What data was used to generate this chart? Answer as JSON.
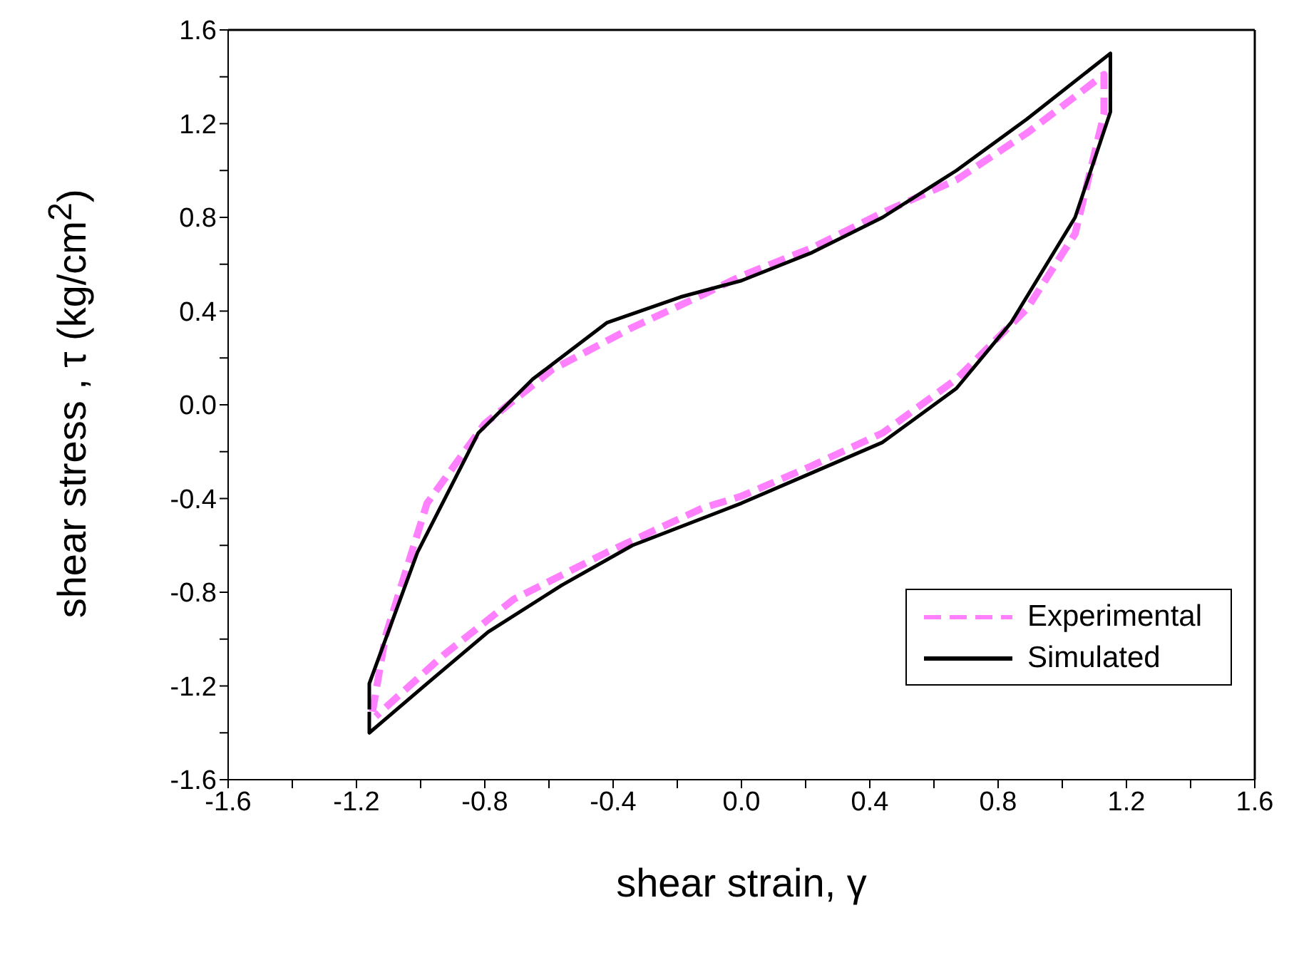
{
  "chart_data": {
    "type": "line",
    "xlabel": "shear strain, γ",
    "ylabel": "shear stress , τ (kg/cm$^{2}$)",
    "xlim": [
      -1.6,
      1.6
    ],
    "ylim": [
      -1.6,
      1.6
    ],
    "xticks": [
      -1.6,
      {
        "value": -1.4,
        "label": null
      },
      -1.2,
      {
        "value": -1.0,
        "label": null
      },
      -0.8,
      {
        "value": -0.6,
        "label": null
      },
      -0.4,
      {
        "value": -0.2,
        "label": null
      },
      {
        "value": 0,
        "label": "0.0"
      },
      {
        "value": 0.2,
        "label": null
      },
      0.4,
      {
        "value": 0.6,
        "label": null
      },
      0.8,
      {
        "value": 1.0,
        "label": null
      },
      1.2,
      {
        "value": 1.4,
        "label": null
      },
      1.6
    ],
    "yticks": [
      -1.6,
      {
        "value": -1.4,
        "label": null
      },
      -1.2,
      {
        "value": -1.0,
        "label": null
      },
      -0.8,
      {
        "value": -0.6,
        "label": null
      },
      -0.4,
      {
        "value": -0.2,
        "label": null
      },
      {
        "value": 0,
        "label": "0.0"
      },
      {
        "value": 0.2,
        "label": null
      },
      0.4,
      {
        "value": 0.6,
        "label": null
      },
      0.8,
      {
        "value": 1.0,
        "label": null
      },
      1.2,
      {
        "value": 1.4,
        "label": null
      },
      1.6
    ],
    "grid": false,
    "legend": "bottom right",
    "marker": "none",
    "series": [
      {
        "name": "Experimental",
        "color": "#ff80ff",
        "line_style": "dashed",
        "x": [
          -1.15,
          -1.11,
          -0.98,
          -0.8,
          -0.59,
          -0.34,
          -0.12,
          0,
          0.22,
          0.44,
          0.67,
          0.89,
          1.13,
          1.13,
          1.04,
          0.89,
          0.67,
          0.44,
          0.22,
          0,
          -0.12,
          -0.42,
          -0.71,
          -0.93,
          -1.14
        ],
        "values": [
          -1.31,
          -0.99,
          -0.42,
          -0.08,
          0.15,
          0.33,
          0.47,
          0.55,
          0.67,
          0.82,
          0.96,
          1.16,
          1.41,
          1.24,
          0.73,
          0.41,
          0.11,
          -0.12,
          -0.26,
          -0.39,
          -0.44,
          -0.63,
          -0.83,
          -1.07,
          -1.33
        ]
      },
      {
        "name": "Simulated",
        "color": "#000000",
        "line_style": "solid",
        "x": [
          -1.16,
          -1.16,
          -1.01,
          -0.82,
          -0.65,
          -0.42,
          -0.19,
          0,
          0.22,
          0.44,
          0.67,
          0.89,
          1.15,
          1.15,
          1.04,
          0.84,
          0.67,
          0.44,
          0.22,
          0,
          -0.34,
          -0.56,
          -0.79,
          -0.98,
          -1.16,
          -1.16
        ],
        "values": [
          -1.3,
          -1.19,
          -0.63,
          -0.12,
          0.11,
          0.35,
          0.46,
          0.53,
          0.65,
          0.8,
          1.0,
          1.22,
          1.5,
          1.25,
          0.8,
          0.35,
          0.07,
          -0.16,
          -0.29,
          -0.42,
          -0.6,
          -0.77,
          -0.97,
          -1.19,
          -1.4,
          -1.31
        ]
      }
    ]
  }
}
